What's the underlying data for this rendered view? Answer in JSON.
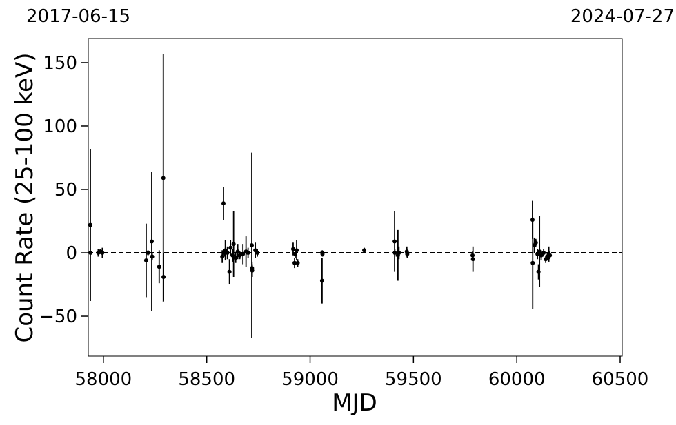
{
  "chart_data": {
    "type": "errorbar",
    "xlabel": "MJD",
    "ylabel": "Count Rate (25-100 keV)",
    "annotations": [
      "2017-06-15",
      "2024-07-27"
    ],
    "hline": 0,
    "xlim": [
      57927,
      60510
    ],
    "ylim": [
      -81.5,
      169
    ],
    "xticks": [
      58000,
      58500,
      59000,
      59500,
      60000,
      60500
    ],
    "yticks": [
      {
        "value": -50,
        "label": "−50"
      },
      0,
      50,
      100,
      150
    ],
    "color": "#000000",
    "series": [
      {
        "x": [
          57937,
          57938,
          57975,
          57985,
          57995,
          58207,
          58216,
          58234,
          58236,
          58270,
          58290,
          58291,
          58575,
          58581,
          58585,
          58590,
          58600,
          58610,
          58615,
          58625,
          58630,
          58640,
          58650,
          58660,
          58675,
          58690,
          58700,
          58718,
          58719,
          58720,
          58735,
          58745,
          58918,
          58925,
          58928,
          58935,
          58940,
          59058,
          59059,
          59060,
          59262,
          59409,
          59410,
          59425,
          59430,
          59468,
          59470,
          59786,
          59788,
          60076,
          60077,
          60085,
          60092,
          60100,
          60105,
          60110,
          60118,
          60130,
          60140,
          60148,
          60155,
          60160
        ],
        "y": [
          22,
          0,
          0,
          1,
          0,
          -6,
          0,
          9,
          -3,
          -11,
          59,
          -19,
          -3,
          39,
          0,
          2,
          0,
          -15,
          4,
          -2,
          7,
          -4,
          1,
          -2,
          -1,
          1,
          0,
          6,
          -12,
          -14,
          2,
          0,
          3,
          -8,
          -1,
          2,
          -8,
          -22,
          0,
          -1,
          2,
          9,
          0,
          -2,
          0,
          1,
          -1,
          -2,
          -5,
          26,
          -8,
          6,
          8,
          -1,
          -15,
          1,
          -2,
          0,
          -5,
          -3,
          -1,
          -2
        ],
        "yerr": [
          60,
          1,
          3,
          2,
          4,
          29,
          2,
          55,
          3,
          13,
          98,
          19,
          5,
          13,
          3,
          8,
          5,
          10,
          6,
          5,
          26,
          4,
          6,
          3,
          8,
          12,
          4,
          73,
          5,
          5,
          6,
          3,
          5,
          4,
          3,
          8,
          3,
          18,
          2,
          2,
          2,
          24,
          3,
          20,
          5,
          4,
          3,
          3,
          10,
          15,
          36,
          6,
          3,
          4,
          6,
          28,
          4,
          3,
          3,
          3,
          6,
          3
        ]
      }
    ]
  }
}
